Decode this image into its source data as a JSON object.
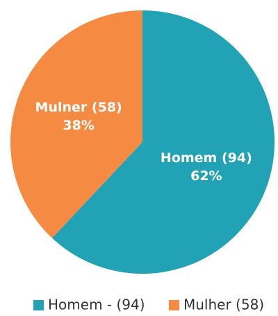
{
  "chart_data": {
    "type": "pie",
    "categories": [
      "Homem (94)",
      "Mulner (58)"
    ],
    "values": [
      62,
      38
    ],
    "value_labels": [
      "62%",
      "38%"
    ],
    "colors": [
      "#21a3b5",
      "#f58a42"
    ],
    "legend": [
      "Homem - (94)",
      "Mulher (58)"
    ],
    "legend_position": "bottom"
  }
}
